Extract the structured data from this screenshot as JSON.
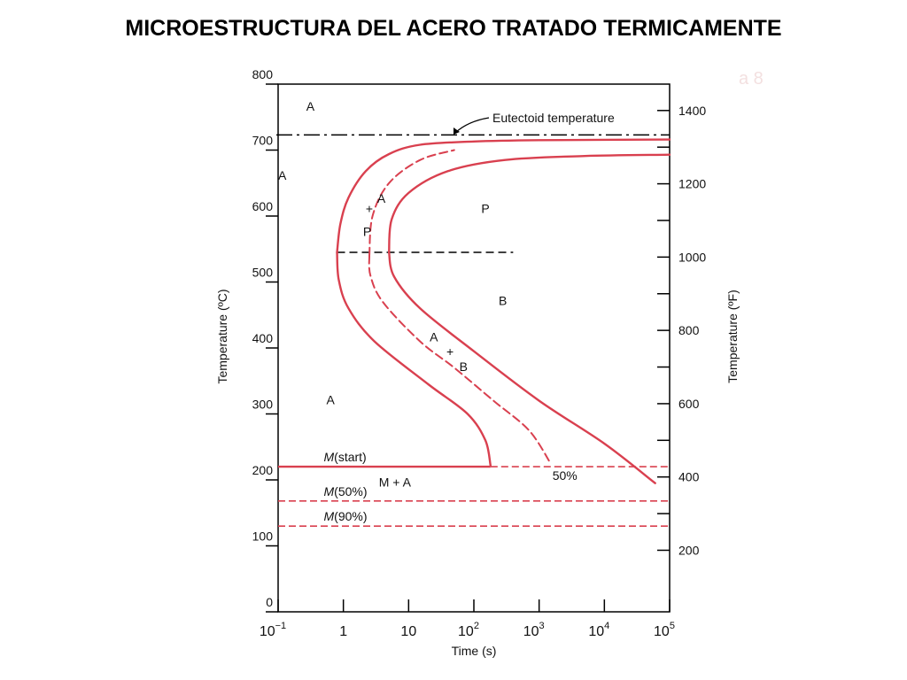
{
  "slide": {
    "title": "MICROESTRUCTURA DEL ACERO TRATADO TERMICAMENTE",
    "number": "a 8"
  },
  "colors": {
    "curve": "#d9404f",
    "axis": "#000000",
    "text": "#111111"
  },
  "chart_data": {
    "type": "line",
    "title": "",
    "xlabel": "Time (s)",
    "ylabel": "Temperature (ºC)",
    "y2label": "Temperature (ºF)",
    "xscale": "log",
    "xlim": [
      0.1,
      100000
    ],
    "ylim": [
      0,
      800
    ],
    "y2lim_F": [
      32,
      1472
    ],
    "x_ticks": [
      {
        "value": 0.1,
        "base": "10",
        "exp": "−1"
      },
      {
        "value": 1,
        "base": "1",
        "exp": ""
      },
      {
        "value": 10,
        "base": "10",
        "exp": ""
      },
      {
        "value": 100,
        "base": "10",
        "exp": "2"
      },
      {
        "value": 1000,
        "base": "10",
        "exp": "3"
      },
      {
        "value": 10000,
        "base": "10",
        "exp": "4"
      },
      {
        "value": 100000,
        "base": "10",
        "exp": "5"
      }
    ],
    "y_ticks": [
      0,
      100,
      200,
      300,
      400,
      500,
      600,
      700,
      800
    ],
    "y2_ticks": [
      200,
      400,
      600,
      800,
      1000,
      1200,
      1400
    ],
    "grid": false,
    "series": [
      {
        "style": "solid",
        "points": [
          [
            0.8,
            545
          ],
          [
            0.9,
            588
          ],
          [
            1.2,
            628
          ],
          [
            2.2,
            668
          ],
          [
            5,
            694
          ],
          [
            15,
            708
          ],
          [
            100,
            713
          ],
          [
            1000,
            715
          ],
          [
            100000,
            716
          ]
        ]
      },
      {
        "style": "solid",
        "points": [
          [
            0.8,
            545
          ],
          [
            0.85,
            503
          ],
          [
            1.2,
            460
          ],
          [
            3,
            410
          ],
          [
            20,
            345
          ],
          [
            80,
            300
          ],
          [
            150,
            260
          ],
          [
            180,
            222
          ]
        ]
      },
      {
        "style": "dashed",
        "points": [
          [
            2.5,
            540
          ],
          [
            2.8,
            600
          ],
          [
            5,
            650
          ],
          [
            15,
            685
          ],
          [
            50,
            700
          ]
        ]
      },
      {
        "style": "dashed",
        "points": [
          [
            2.5,
            540
          ],
          [
            2.6,
            510
          ],
          [
            4,
            470
          ],
          [
            15,
            410
          ],
          [
            50,
            370
          ],
          [
            200,
            320
          ],
          [
            700,
            275
          ],
          [
            1500,
            225
          ]
        ]
      },
      {
        "style": "solid",
        "points": [
          [
            5,
            545
          ],
          [
            5.5,
            595
          ],
          [
            10,
            635
          ],
          [
            40,
            668
          ],
          [
            300,
            685
          ],
          [
            5000,
            691
          ],
          [
            100000,
            693
          ]
        ]
      },
      {
        "style": "solid",
        "points": [
          [
            5,
            545
          ],
          [
            6,
            508
          ],
          [
            15,
            460
          ],
          [
            100,
            395
          ],
          [
            1000,
            320
          ],
          [
            10000,
            255
          ],
          [
            60000,
            195
          ]
        ]
      }
    ],
    "reference_lines": [
      {
        "id": "eutectoid",
        "y": 723,
        "style": "dashdot",
        "label": "Eutectoid temperature"
      },
      {
        "id": "bainite-nose",
        "y": 545,
        "x1": 0.8,
        "x2": 400,
        "style": "dashed-black",
        "label": ""
      },
      {
        "id": "ms-solid",
        "y": 220,
        "x1": 0.1,
        "x2": 180,
        "style": "solid",
        "label_italic": "M",
        "label_rest": "(start)"
      },
      {
        "id": "ms-dashed",
        "y": 220,
        "x1": 180,
        "x2": 100000,
        "style": "dashed",
        "label_italic": "",
        "label_rest": ""
      },
      {
        "id": "m50",
        "y": 168,
        "x1": 0.1,
        "x2": 100000,
        "style": "dashed",
        "label_italic": "M",
        "label_rest": "(50%)"
      },
      {
        "id": "m90",
        "y": 130,
        "x1": 0.1,
        "x2": 100000,
        "style": "dashed",
        "label_italic": "M",
        "label_rest": "(90%)"
      }
    ],
    "annotations": [
      {
        "text": "A",
        "x": 0.27,
        "y": 760
      },
      {
        "text": "A",
        "x": 0.1,
        "y": 655
      },
      {
        "text": "A",
        "x": 3.3,
        "y": 620
      },
      {
        "text": "+",
        "x": 2.2,
        "y": 605
      },
      {
        "text": "P",
        "x": 2.0,
        "y": 570
      },
      {
        "text": "P",
        "x": 130,
        "y": 605
      },
      {
        "text": "B",
        "x": 240,
        "y": 465
      },
      {
        "text": "A",
        "x": 21,
        "y": 410
      },
      {
        "text": "+",
        "x": 38,
        "y": 388
      },
      {
        "text": "B",
        "x": 60,
        "y": 365
      },
      {
        "text": "A",
        "x": 0.55,
        "y": 315
      },
      {
        "text": "M + A",
        "x": 3.5,
        "y": 190
      },
      {
        "text": "50%",
        "x": 1600,
        "y": 200
      }
    ]
  }
}
